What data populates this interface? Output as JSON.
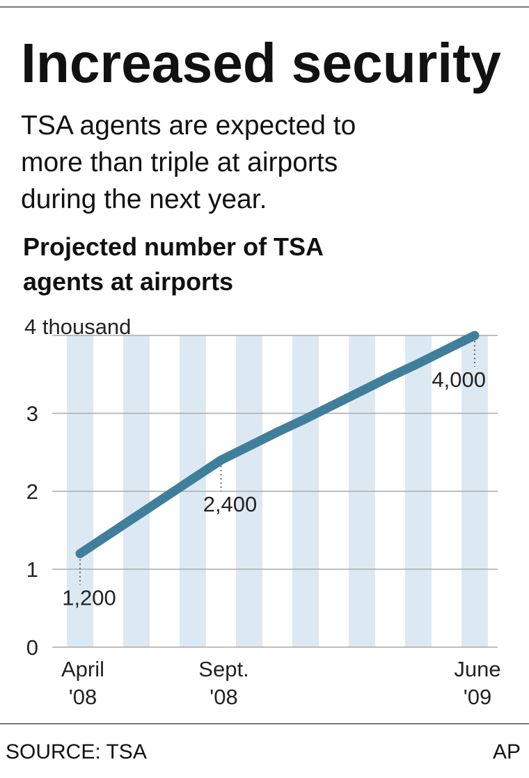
{
  "title": "Increased security",
  "subtitle": [
    "TSA agents are expected to",
    "more than triple at airports",
    "during the next year."
  ],
  "source": "SOURCE: TSA",
  "credit": "AP",
  "chart_data": {
    "type": "line",
    "title": [
      "Projected number of TSA",
      "agents at airports"
    ],
    "categories": [
      "April '08",
      null,
      null,
      null,
      null,
      "Sept. '08",
      null,
      null,
      null,
      null,
      null,
      null,
      null,
      null,
      "June '09"
    ],
    "values": [
      1.2,
      1.44,
      1.68,
      1.92,
      2.16,
      2.4,
      2.58,
      2.76,
      2.93,
      3.11,
      3.29,
      3.47,
      3.64,
      3.82,
      4.0
    ],
    "value_labels": [
      "1,200",
      null,
      null,
      null,
      null,
      "2,400",
      null,
      null,
      null,
      null,
      null,
      null,
      null,
      null,
      "4,000"
    ],
    "color": "#3f7f9c",
    "stripe_color": "#dde9f2",
    "ylim": [
      0,
      4
    ],
    "yticks": [
      0,
      1,
      2,
      3,
      {
        "value": 4,
        "label": "4 thousand"
      }
    ],
    "grid": true
  }
}
